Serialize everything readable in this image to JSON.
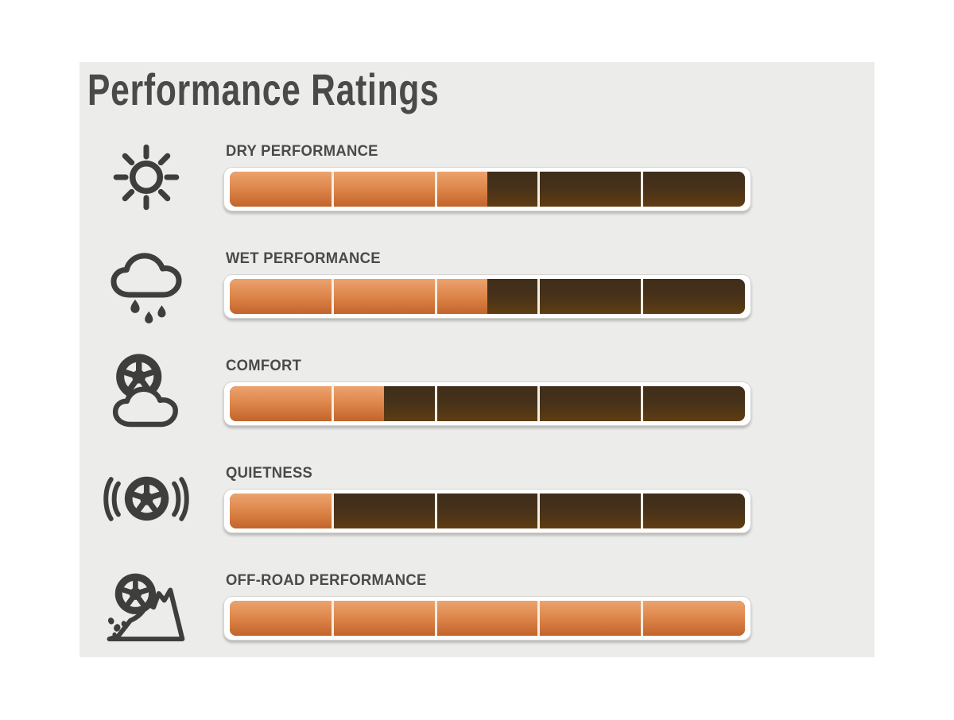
{
  "panel": {
    "title": "Performance Ratings",
    "background": "#ECECEB"
  },
  "colors": {
    "fill_orange_top": "#ECA36E",
    "fill_orange_bottom": "#C2642C",
    "track_brown_top": "#3F2E1A",
    "track_brown_bottom": "#5F3D12",
    "text": "#4A4A49",
    "icon": "#3E3E3D",
    "segment_divider": "#F2EEE6"
  },
  "ratings": [
    {
      "label": "DRY PERFORMANCE",
      "icon": "sun-icon",
      "percent": 50,
      "value_out_of_5": 2.5,
      "max": 5
    },
    {
      "label": "WET PERFORMANCE",
      "icon": "rain-cloud-icon",
      "percent": 50,
      "value_out_of_5": 2.5,
      "max": 5
    },
    {
      "label": "COMFORT",
      "icon": "tire-cloud-icon",
      "percent": 30,
      "value_out_of_5": 1.5,
      "max": 5
    },
    {
      "label": "QUIETNESS",
      "icon": "tire-sound-waves-icon",
      "percent": 20,
      "value_out_of_5": 1.0,
      "max": 5
    },
    {
      "label": "OFF-ROAD PERFORMANCE",
      "icon": "tire-rocks-icon",
      "percent": 100,
      "value_out_of_5": 5.0,
      "max": 5
    }
  ],
  "chart_data": {
    "type": "bar",
    "orientation": "horizontal",
    "title": "Performance Ratings",
    "categories": [
      "DRY PERFORMANCE",
      "WET PERFORMANCE",
      "COMFORT",
      "QUIETNESS",
      "OFF-ROAD PERFORMANCE"
    ],
    "values_percent": [
      50,
      50,
      30,
      20,
      100
    ],
    "values_out_of_5": [
      2.5,
      2.5,
      1.5,
      1.0,
      5.0
    ],
    "scale_segments": 5,
    "xlim": [
      0,
      5
    ],
    "legend": "none",
    "grid": "segment dividers at 1,2,3,4"
  }
}
